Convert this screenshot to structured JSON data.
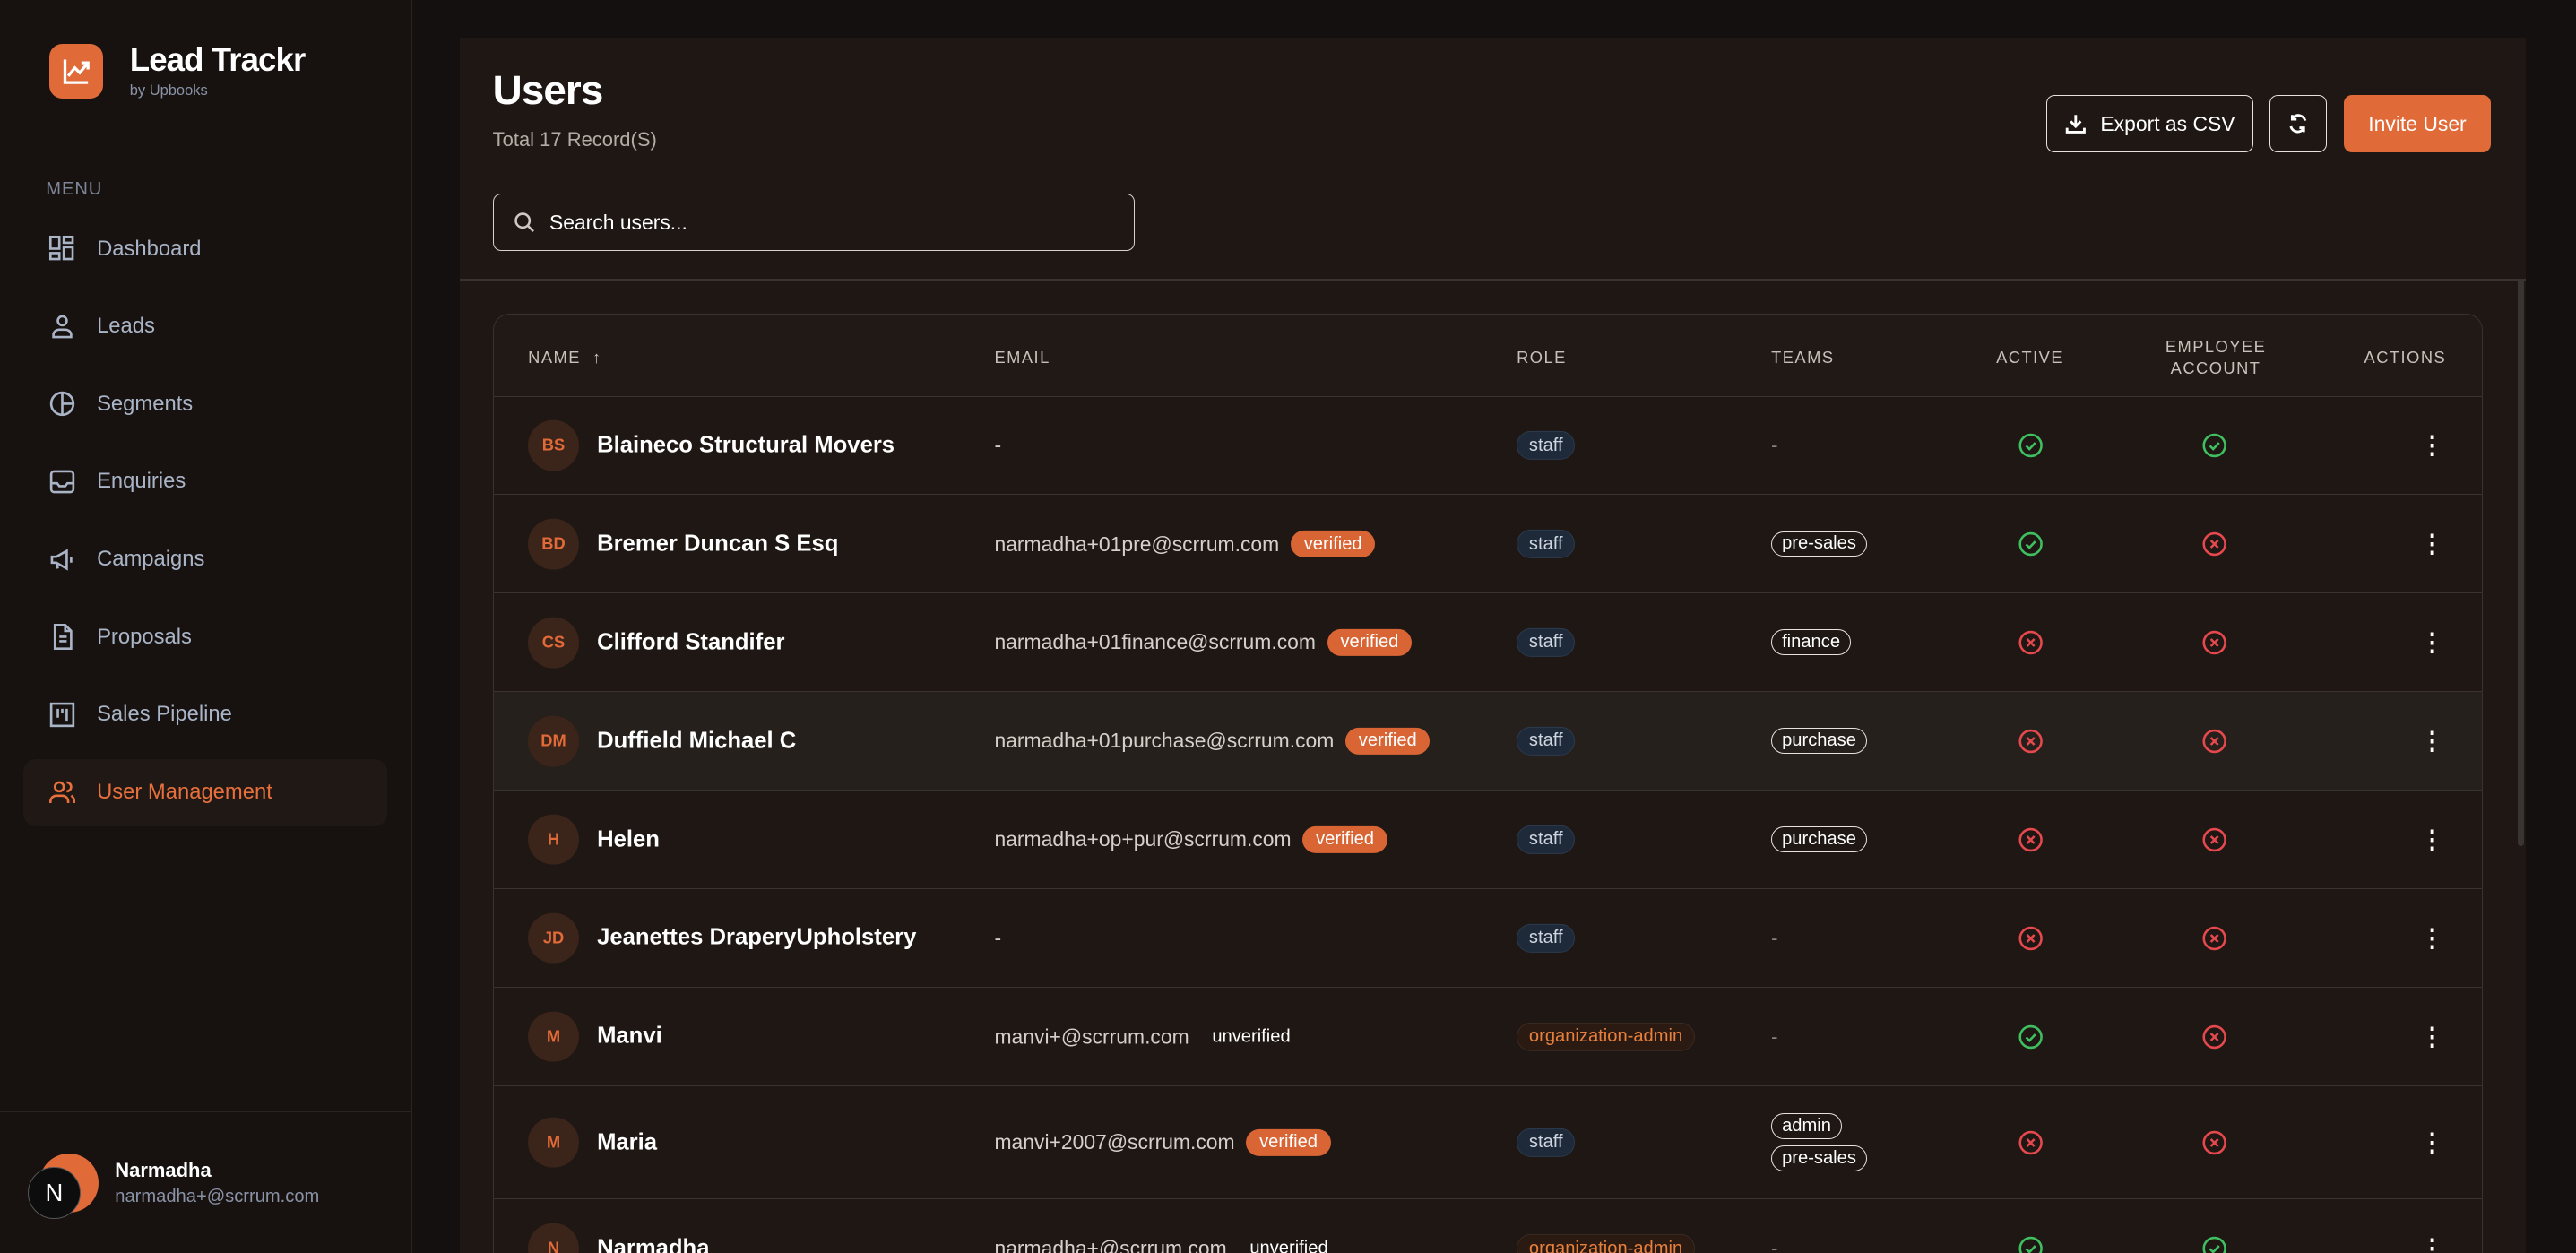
{
  "app": {
    "name": "Lead Trackr",
    "subtitle": "by Upbooks"
  },
  "sidebar": {
    "menu_label": "MENU",
    "items": [
      {
        "label": "Dashboard",
        "icon": "dashboard-icon"
      },
      {
        "label": "Leads",
        "icon": "user-icon"
      },
      {
        "label": "Segments",
        "icon": "pie-chart-icon"
      },
      {
        "label": "Enquiries",
        "icon": "inbox-icon"
      },
      {
        "label": "Campaigns",
        "icon": "megaphone-icon"
      },
      {
        "label": "Proposals",
        "icon": "document-icon"
      },
      {
        "label": "Sales Pipeline",
        "icon": "kanban-icon"
      },
      {
        "label": "User Management",
        "icon": "users-icon",
        "active": true
      }
    ]
  },
  "user": {
    "initial": "N",
    "name": "Narmadha",
    "email": "narmadha+@scrrum.com"
  },
  "page": {
    "title": "Users",
    "subtitle": "Total 17 Record(S)",
    "export_label": "Export as CSV",
    "invite_label": "Invite User",
    "search_placeholder": "Search users..."
  },
  "colors": {
    "accent": "#e06a38",
    "active": "#3fbf5f",
    "inactive": "#e5484d"
  },
  "table": {
    "headers": {
      "name": "NAME",
      "email": "EMAIL",
      "role": "ROLE",
      "teams": "TEAMS",
      "active": "ACTIVE",
      "employee1": "EMPLOYEE",
      "employee2": "ACCOUNT",
      "actions": "ACTIONS"
    },
    "sort_icon": "arrow-up-icon",
    "rows": [
      {
        "initials": "BS",
        "name": "Blaineco Structural Movers",
        "email": "-",
        "status": "",
        "role": "staff",
        "teams": [],
        "active": true,
        "employee": true
      },
      {
        "initials": "BD",
        "name": "Bremer Duncan S Esq",
        "email": "narmadha+01pre@scrrum.com",
        "status": "verified",
        "role": "staff",
        "teams": [
          "pre-sales"
        ],
        "active": true,
        "employee": false
      },
      {
        "initials": "CS",
        "name": "Clifford Standifer",
        "email": "narmadha+01finance@scrrum.com",
        "status": "verified",
        "role": "staff",
        "teams": [
          "finance"
        ],
        "active": false,
        "employee": false
      },
      {
        "initials": "DM",
        "name": "Duffield Michael C",
        "email": "narmadha+01purchase@scrrum.com",
        "status": "verified",
        "role": "staff",
        "teams": [
          "purchase"
        ],
        "active": false,
        "employee": false
      },
      {
        "initials": "H",
        "name": "Helen",
        "email": "narmadha+op+pur@scrrum.com",
        "status": "verified",
        "role": "staff",
        "teams": [
          "purchase"
        ],
        "active": false,
        "employee": false
      },
      {
        "initials": "JD",
        "name": "Jeanettes DraperyUpholstery",
        "email": "-",
        "status": "",
        "role": "staff",
        "teams": [],
        "active": false,
        "employee": false
      },
      {
        "initials": "M",
        "name": "Manvi",
        "email": "manvi+@scrrum.com",
        "status": "unverified",
        "role": "organization-admin",
        "teams": [],
        "active": true,
        "employee": false
      },
      {
        "initials": "M",
        "name": "Maria",
        "email": "manvi+2007@scrrum.com",
        "status": "verified",
        "role": "staff",
        "teams": [
          "admin",
          "pre-sales"
        ],
        "active": false,
        "employee": false
      },
      {
        "initials": "N",
        "name": "Narmadha",
        "email": "narmadha+@scrrum.com",
        "status": "unverified",
        "role": "organization-admin",
        "teams": [],
        "active": true,
        "employee": true
      }
    ]
  }
}
